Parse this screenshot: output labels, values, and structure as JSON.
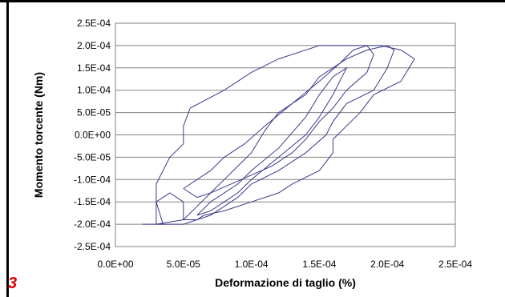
{
  "figure_number": "3",
  "chart_data": {
    "type": "line",
    "title": "",
    "xlabel": "Deformazione di taglio (%)",
    "ylabel": "Momento torcente (Nm)",
    "xlim": [
      0,
      0.00025
    ],
    "ylim": [
      -0.00025,
      0.00025
    ],
    "x_ticks": [
      "0.0E+00",
      "5.0E-05",
      "1.0E-04",
      "1.5E-04",
      "2.0E-04",
      "2.5E-04"
    ],
    "y_ticks": [
      "2.5E-04",
      "2.0E-04",
      "1.5E-04",
      "1.0E-04",
      "5.0E-05",
      "0.0E+00",
      "-5.0E-05",
      "-1.0E-04",
      "-1.5E-04",
      "-2.0E-04",
      "-2.5E-04"
    ],
    "grid": "horizontal",
    "line_color": "#3a3a8c",
    "series": [
      {
        "x": [
          2e-05,
          3.5e-05,
          3e-05,
          3e-05,
          3.5e-05,
          4e-05,
          5e-05,
          5e-05,
          5.5e-05,
          8e-05,
          0.0001,
          0.00012,
          0.00015,
          0.00017,
          0.000195,
          0.00021,
          0.00022,
          0.00021,
          0.00019,
          0.00018,
          0.00017,
          0.00016,
          0.00016,
          0.00015,
          0.00013,
          0.00012,
          0.0001,
          8e-05,
          6.5e-05,
          6e-05,
          5e-05,
          5e-05,
          4e-05,
          3e-05,
          3e-05,
          2e-05
        ],
        "y": [
          -0.0002,
          -0.0002,
          -0.00015,
          -0.00011,
          -8e-05,
          -5e-05,
          -2e-05,
          2e-05,
          6e-05,
          0.0001,
          0.00014,
          0.00017,
          0.0002,
          0.0002,
          0.0002,
          0.00019,
          0.00017,
          0.00012,
          9e-05,
          5e-05,
          2e-05,
          -1e-05,
          -4e-05,
          -8e-05,
          -0.00011,
          -0.00013,
          -0.00015,
          -0.00017,
          -0.00018,
          -0.00019,
          -0.00019,
          -0.00015,
          -0.00013,
          -0.00015,
          -0.0002,
          -0.0002
        ]
      },
      {
        "x": [
          3e-05,
          5e-05,
          6e-05,
          7e-05,
          8e-05,
          9e-05,
          0.0001,
          0.00011,
          0.00012,
          0.00014,
          0.00015,
          0.00017,
          0.000185,
          0.0002,
          0.000205,
          0.0002,
          0.00019,
          0.00017,
          0.00016,
          0.000155,
          0.00014,
          0.00012,
          0.0001,
          9e-05,
          8e-05,
          7e-05,
          6e-05,
          5e-05,
          4e-05,
          3e-05
        ],
        "y": [
          -0.0002,
          -0.00019,
          -0.00016,
          -0.00013,
          -0.0001,
          -7e-05,
          -4e-05,
          1e-05,
          5e-05,
          9e-05,
          0.00013,
          0.00017,
          0.00019,
          0.0002,
          0.00019,
          0.00015,
          0.0001,
          7e-05,
          3e-05,
          0.0,
          -4e-05,
          -8e-05,
          -0.00011,
          -0.00014,
          -0.00016,
          -0.00018,
          -0.00019,
          -0.0002,
          -0.0002,
          -0.0002
        ]
      },
      {
        "x": [
          5e-05,
          6e-05,
          7e-05,
          8e-05,
          9.5e-05,
          0.00011,
          0.00013,
          0.00015,
          0.000165,
          0.000175,
          0.000185,
          0.00019,
          0.000185,
          0.00017,
          0.00016,
          0.00015,
          0.00014,
          0.00013,
          0.000115,
          0.0001,
          8.5e-05,
          7e-05,
          6e-05,
          5e-05
        ],
        "y": [
          -0.00012,
          -0.0001,
          -8e-05,
          -5e-05,
          -2e-05,
          2e-05,
          7e-05,
          0.00012,
          0.00016,
          0.00019,
          0.0002,
          0.00018,
          0.00014,
          0.0001,
          6e-05,
          3e-05,
          -1e-05,
          -4e-05,
          -7e-05,
          -9e-05,
          -0.00011,
          -0.00013,
          -0.00014,
          -0.00012
        ]
      },
      {
        "x": [
          6e-05,
          7e-05,
          9e-05,
          0.0001,
          0.00012,
          0.00014,
          0.00015,
          0.00016,
          0.00017,
          0.00016,
          0.00015,
          0.00014,
          0.00012,
          0.0001,
          9e-05,
          8e-05,
          7e-05,
          6e-05
        ],
        "y": [
          -0.00018,
          -0.00015,
          -0.00011,
          -8e-05,
          -3e-05,
          4e-05,
          9e-05,
          0.00013,
          0.00015,
          9e-05,
          4e-05,
          0.0,
          -5e-05,
          -0.0001,
          -0.00013,
          -0.00015,
          -0.00017,
          -0.00018
        ]
      }
    ]
  }
}
